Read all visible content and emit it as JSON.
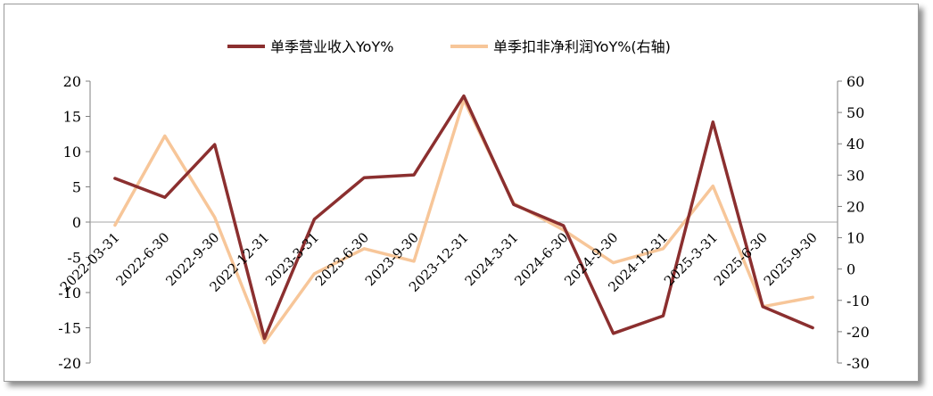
{
  "chart_data": {
    "type": "line",
    "categories": [
      "2022-03-31",
      "2022-6-30",
      "2022-9-30",
      "2022-12-31",
      "2023-3-31",
      "2023-6-30",
      "2023-9-30",
      "2023-12-31",
      "2024-3-31",
      "2024-6-30",
      "2024-9-30",
      "2024-12-31",
      "2025-3-31",
      "2025-6-30",
      "2025-9-30"
    ],
    "series": [
      {
        "name": "单季营业收入YoY%",
        "axis": "left",
        "color": "#8B2F2F",
        "values": [
          6.2,
          3.5,
          11.0,
          -16.5,
          0.4,
          6.3,
          6.7,
          17.9,
          2.5,
          -0.5,
          -15.8,
          -13.3,
          14.2,
          -12.0,
          -15.0
        ]
      },
      {
        "name": "单季扣非净利润YoY%(右轴)",
        "axis": "right",
        "color": "#F7C699",
        "values": [
          14.0,
          42.5,
          16.5,
          -23.5,
          -1.5,
          6.5,
          2.5,
          54.0,
          21.0,
          12.5,
          2.0,
          6.5,
          26.5,
          -12.0,
          -9.0
        ]
      }
    ],
    "y_left": {
      "min": -20,
      "max": 20,
      "step": 5
    },
    "y_right": {
      "min": -30,
      "max": 60,
      "step": 10
    },
    "legend_position": "top-center",
    "grid": false
  }
}
